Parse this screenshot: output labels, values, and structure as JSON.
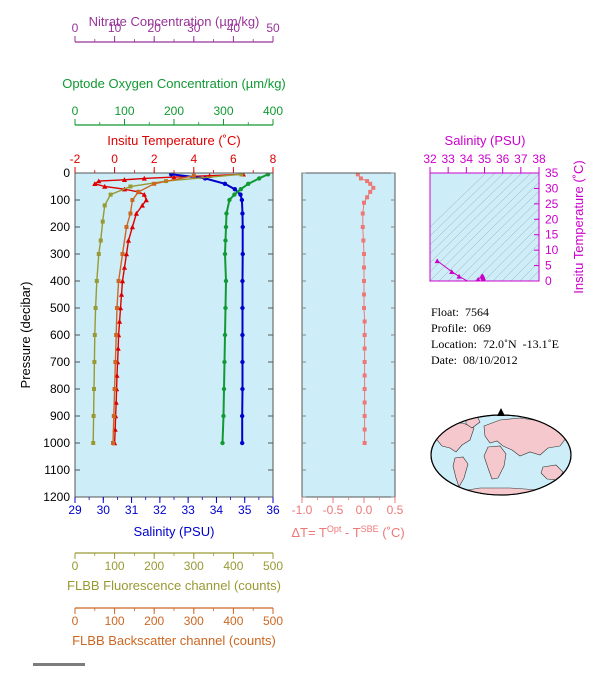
{
  "float_info": {
    "float_label": "Float:  7564",
    "profile_label": "Profile:  069",
    "location_label": "Location:  72.0˚N  -13.1˚E",
    "date_label": "Date:  08/10/2012"
  },
  "colors": {
    "panel_bg": "#cdeef8",
    "temperature": "#dd0000",
    "salinity": "#0000cc",
    "oxygen": "#119933",
    "nitrate": "#993399",
    "fluorescence": "#999933",
    "backscatter": "#cc6622",
    "delta_t": "#ee7777",
    "ts_axis": "#cc00cc",
    "land": "#f4c8cc"
  },
  "chart_data": [
    {
      "type": "line",
      "panel": "main_profile",
      "ylabel": "Pressure (decibar)",
      "ylim": [
        1200,
        0
      ],
      "yticks": [
        0,
        100,
        200,
        300,
        400,
        500,
        600,
        700,
        800,
        900,
        1000,
        1100,
        1200
      ],
      "grid": false,
      "axes": {
        "temperature": {
          "label": "Insitu Temperature (˚C)",
          "range": [
            -2,
            8
          ],
          "ticks": [
            -2,
            0,
            2,
            4,
            6,
            8
          ]
        },
        "nitrate": {
          "label": "Nitrate Concentration (µm/kg)",
          "range": [
            0,
            50
          ],
          "ticks": [
            0,
            10,
            20,
            30,
            40,
            50
          ]
        },
        "oxygen": {
          "label": "Optode Oxygen Concentration (µm/kg)",
          "range": [
            0,
            400
          ],
          "ticks": [
            0,
            100,
            200,
            300,
            400
          ]
        },
        "salinity": {
          "label": "Salinity (PSU)",
          "range": [
            29,
            36
          ],
          "ticks": [
            29,
            30,
            31,
            32,
            33,
            34,
            35,
            36
          ]
        },
        "fluorescence": {
          "label": "FLBB Fluorescence channel (counts)",
          "range": [
            0,
            500
          ],
          "ticks": [
            0,
            100,
            200,
            300,
            400,
            500
          ]
        },
        "backscatter": {
          "label": "FLBB Backscatter channel (counts)",
          "range": [
            0,
            500
          ],
          "ticks": [
            0,
            100,
            200,
            300,
            400,
            500
          ]
        }
      },
      "series": [
        {
          "key": "temperature",
          "marker": "triangle",
          "points": [
            [
              6.5,
              5
            ],
            [
              4.8,
              10
            ],
            [
              3.0,
              15
            ],
            [
              1.5,
              20
            ],
            [
              0.5,
              25
            ],
            [
              -0.8,
              30
            ],
            [
              -1.0,
              40
            ],
            [
              -0.5,
              50
            ],
            [
              0.5,
              60
            ],
            [
              1.2,
              70
            ],
            [
              1.5,
              80
            ],
            [
              1.6,
              100
            ],
            [
              1.4,
              120
            ],
            [
              1.1,
              150
            ],
            [
              0.9,
              200
            ],
            [
              0.7,
              250
            ],
            [
              0.6,
              300
            ],
            [
              0.5,
              350
            ],
            [
              0.4,
              400
            ],
            [
              0.35,
              450
            ],
            [
              0.3,
              500
            ],
            [
              0.25,
              550
            ],
            [
              0.2,
              600
            ],
            [
              0.18,
              650
            ],
            [
              0.15,
              700
            ],
            [
              0.12,
              750
            ],
            [
              0.1,
              800
            ],
            [
              0.08,
              850
            ],
            [
              0.05,
              900
            ],
            [
              0.03,
              950
            ],
            [
              0.0,
              1000
            ]
          ]
        },
        {
          "key": "salinity",
          "marker": "circle",
          "points": [
            [
              32.4,
              5
            ],
            [
              33.6,
              20
            ],
            [
              34.3,
              40
            ],
            [
              34.65,
              60
            ],
            [
              34.85,
              80
            ],
            [
              34.9,
              100
            ],
            [
              34.92,
              150
            ],
            [
              34.93,
              200
            ],
            [
              34.93,
              300
            ],
            [
              34.92,
              400
            ],
            [
              34.92,
              500
            ],
            [
              34.92,
              600
            ],
            [
              34.92,
              700
            ],
            [
              34.92,
              800
            ],
            [
              34.91,
              900
            ],
            [
              34.91,
              1000
            ]
          ]
        },
        {
          "key": "oxygen",
          "marker": "circle",
          "points": [
            [
              390,
              5
            ],
            [
              372,
              20
            ],
            [
              350,
              40
            ],
            [
              335,
              60
            ],
            [
              322,
              80
            ],
            [
              312,
              100
            ],
            [
              306,
              150
            ],
            [
              305,
              200
            ],
            [
              304,
              250
            ],
            [
              303,
              300
            ],
            [
              305,
              400
            ],
            [
              304,
              500
            ],
            [
              303,
              600
            ],
            [
              302,
              700
            ],
            [
              301,
              800
            ],
            [
              300,
              900
            ],
            [
              298,
              1000
            ]
          ]
        },
        {
          "key": "fluorescence",
          "marker": "square",
          "points": [
            [
              420,
              5
            ],
            [
              230,
              30
            ],
            [
              140,
              50
            ],
            [
              90,
              80
            ],
            [
              75,
              120
            ],
            [
              70,
              180
            ],
            [
              65,
              250
            ],
            [
              60,
              300
            ],
            [
              55,
              400
            ],
            [
              52,
              500
            ],
            [
              50,
              600
            ],
            [
              49,
              700
            ],
            [
              48,
              800
            ],
            [
              47,
              900
            ],
            [
              46,
              1000
            ]
          ]
        },
        {
          "key": "backscatter",
          "marker": "square",
          "points": [
            [
              300,
              10
            ],
            [
              200,
              40
            ],
            [
              160,
              70
            ],
            [
              145,
              100
            ],
            [
              140,
              150
            ],
            [
              130,
              200
            ],
            [
              120,
              300
            ],
            [
              110,
              400
            ],
            [
              106,
              500
            ],
            [
              104,
              600
            ],
            [
              102,
              700
            ],
            [
              100,
              800
            ],
            [
              98,
              900
            ],
            [
              96,
              1000
            ]
          ]
        }
      ]
    },
    {
      "type": "line",
      "panel": "delta_t",
      "xlabel": "ΔT= T^Opt - T^SBE (˚C)",
      "xlim": [
        -1.0,
        0.5
      ],
      "xticks": [
        -1.0,
        -0.5,
        0.0,
        0.5
      ],
      "ylim": [
        1200,
        0
      ],
      "series": [
        {
          "key": "delta_t",
          "marker": "square",
          "points": [
            [
              -0.1,
              5
            ],
            [
              -0.05,
              20
            ],
            [
              0.05,
              30
            ],
            [
              0.1,
              40
            ],
            [
              0.15,
              55
            ],
            [
              0.1,
              70
            ],
            [
              0.05,
              90
            ],
            [
              0.0,
              110
            ],
            [
              -0.02,
              150
            ],
            [
              -0.02,
              200
            ],
            [
              -0.01,
              250
            ],
            [
              0.0,
              300
            ],
            [
              0.0,
              350
            ],
            [
              0.0,
              400
            ],
            [
              0.0,
              450
            ],
            [
              0.0,
              500
            ],
            [
              0.01,
              550
            ],
            [
              0.01,
              600
            ],
            [
              0.01,
              650
            ],
            [
              0.01,
              700
            ],
            [
              0.01,
              750
            ],
            [
              0.01,
              800
            ],
            [
              0.01,
              850
            ],
            [
              0.01,
              900
            ],
            [
              0.01,
              950
            ],
            [
              0.01,
              1000
            ]
          ]
        }
      ]
    },
    {
      "type": "scatter",
      "panel": "ts_diagram",
      "xlabel": "Salinity (PSU)",
      "ylabel": "Insitu Temperature (˚C)",
      "xlim": [
        32,
        38
      ],
      "ylim": [
        0,
        35
      ],
      "xticks": [
        32,
        33,
        34,
        35,
        36,
        37,
        38
      ],
      "yticks": [
        0,
        5,
        10,
        15,
        20,
        25,
        30,
        35
      ],
      "series": [
        {
          "key": "ts",
          "marker": "triangle",
          "points": [
            [
              32.4,
              6.5
            ],
            [
              33.2,
              3.0
            ],
            [
              33.6,
              1.5
            ],
            [
              34.3,
              -0.8
            ],
            [
              34.65,
              0.5
            ],
            [
              34.85,
              1.5
            ],
            [
              34.9,
              1.6
            ],
            [
              34.92,
              1.1
            ],
            [
              34.93,
              0.7
            ],
            [
              34.92,
              0.4
            ],
            [
              34.92,
              0.2
            ],
            [
              34.91,
              0.0
            ]
          ]
        }
      ]
    }
  ]
}
